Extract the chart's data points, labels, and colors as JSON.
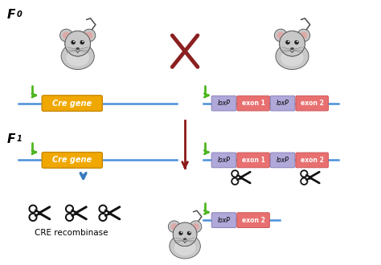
{
  "background_color": "#ffffff",
  "f0_label": "F",
  "f0_sub": "0",
  "f1_label": "F",
  "f1_sub": "1",
  "cross_color": "#8B2020",
  "arrow_color": "#4db520",
  "line_color": "#4a90d9",
  "cre_box_color": "#f0a800",
  "cre_box_edge": "#c88800",
  "cre_text": "Cre gene",
  "loxp_color": "#b0a8d8",
  "loxp_edge": "#8880bb",
  "exon_color": "#e87070",
  "exon_edge": "#cc5555",
  "loxp_label": "loxP",
  "exon1_label": "exon 1",
  "exon2_label": "exon 2",
  "cre_recombinase_label": "CRE recombinase",
  "divider_color": "#8B1A1A",
  "blue_arrow_color": "#3a7abf",
  "scissors_color": "#111111",
  "mouse_body": "#c8c8c8",
  "mouse_edge": "#555555",
  "mouse_ear_inner": "#ddaaaa"
}
